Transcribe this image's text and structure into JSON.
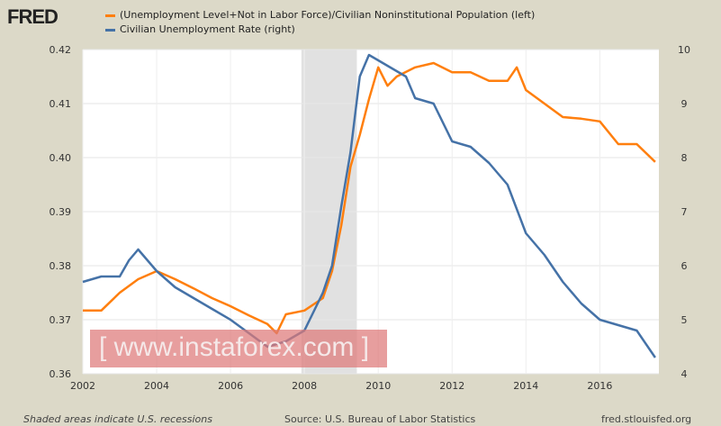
{
  "header": {
    "logo": "FRED"
  },
  "watermark": "[ www.instaforex.com ]",
  "footer": {
    "note": "Shaded areas indicate U.S. recessions",
    "source": "Source: U.S. Bureau of Labor Statistics",
    "site": "fred.stlouisfed.org"
  },
  "chart_data": {
    "type": "line",
    "title": "",
    "xlim": [
      2002.0,
      2017.6
    ],
    "x_ticks": [
      "2002",
      "2004",
      "2006",
      "2008",
      "2010",
      "2012",
      "2014",
      "2016"
    ],
    "y_left": {
      "lim": [
        0.36,
        0.42
      ],
      "ticks": [
        "0.36",
        "0.37",
        "0.38",
        "0.39",
        "0.40",
        "0.41",
        "0.42"
      ]
    },
    "y_right": {
      "lim": [
        4,
        10
      ],
      "ticks": [
        "4",
        "5",
        "6",
        "7",
        "8",
        "9",
        "10"
      ]
    },
    "recessions": [
      [
        2007.92,
        2009.42
      ]
    ],
    "grid": true,
    "legend_position": "top",
    "series": [
      {
        "name": "(Unemployment Level+Not in Labor Force)/Civilian Noninstitutional Population (left)",
        "axis": "left",
        "color": "#ff7f0e",
        "x": [
          2002.0,
          2002.5,
          2003.0,
          2003.5,
          2004.0,
          2004.5,
          2005.0,
          2005.5,
          2006.0,
          2006.5,
          2007.0,
          2007.25,
          2007.5,
          2008.0,
          2008.5,
          2008.75,
          2009.0,
          2009.25,
          2009.5,
          2009.75,
          2010.0,
          2010.25,
          2010.5,
          2011.0,
          2011.5,
          2012.0,
          2012.5,
          2013.0,
          2013.5,
          2013.75,
          2014.0,
          2014.5,
          2015.0,
          2015.5,
          2016.0,
          2016.5,
          2017.0,
          2017.5
        ],
        "values": [
          0.3717,
          0.3717,
          0.375,
          0.3775,
          0.379,
          0.3775,
          0.3758,
          0.374,
          0.3725,
          0.3708,
          0.3692,
          0.3675,
          0.371,
          0.3717,
          0.374,
          0.379,
          0.3875,
          0.3983,
          0.4042,
          0.4108,
          0.4167,
          0.4133,
          0.415,
          0.4167,
          0.4175,
          0.4158,
          0.4158,
          0.4142,
          0.4142,
          0.4167,
          0.4125,
          0.41,
          0.4075,
          0.4072,
          0.4067,
          0.4025,
          0.4025,
          0.3992
        ]
      },
      {
        "name": "Civilian Unemployment Rate (right)",
        "axis": "right",
        "color": "#4572a7",
        "x": [
          2002.0,
          2002.5,
          2003.0,
          2003.25,
          2003.5,
          2004.0,
          2004.5,
          2005.0,
          2005.5,
          2006.0,
          2006.5,
          2007.0,
          2007.5,
          2008.0,
          2008.5,
          2008.75,
          2009.0,
          2009.25,
          2009.5,
          2009.75,
          2010.0,
          2010.5,
          2010.75,
          2011.0,
          2011.5,
          2012.0,
          2012.5,
          2013.0,
          2013.5,
          2014.0,
          2014.5,
          2015.0,
          2015.5,
          2016.0,
          2016.5,
          2017.0,
          2017.5
        ],
        "values": [
          5.7,
          5.8,
          5.8,
          6.1,
          6.3,
          5.9,
          5.6,
          5.4,
          5.2,
          5.0,
          4.75,
          4.5,
          4.6,
          4.8,
          5.5,
          6.0,
          7.1,
          8.1,
          9.5,
          9.9,
          9.8,
          9.6,
          9.5,
          9.1,
          9.0,
          8.3,
          8.2,
          7.9,
          7.5,
          6.6,
          6.2,
          5.7,
          5.3,
          5.0,
          4.9,
          4.8,
          4.3
        ]
      }
    ]
  }
}
